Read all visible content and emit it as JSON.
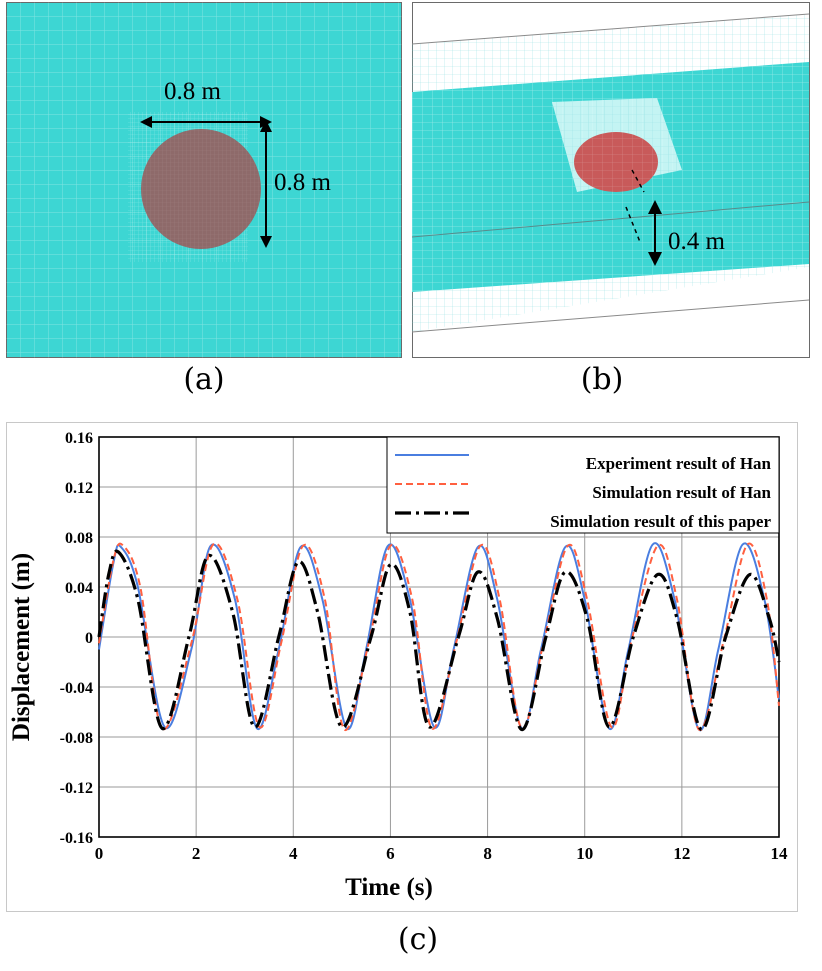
{
  "panel_a": {
    "label": "(a)",
    "width_label": "0.8 m",
    "height_label": "0.8 m",
    "colors": {
      "water": "#3dd6d3",
      "body": "#8e6a6a"
    }
  },
  "panel_b": {
    "label": "(b)",
    "draft_label": "0.4 m",
    "colors": {
      "water": "#3dd6d3",
      "body": "#c85a5a"
    }
  },
  "panel_c": {
    "label": "(c)"
  },
  "chart_data": {
    "type": "line",
    "xlabel": "Time (s)",
    "ylabel": "Displacement (m)",
    "xlim": [
      0,
      14
    ],
    "ylim": [
      -0.16,
      0.16
    ],
    "xticks": [
      "0",
      "2",
      "4",
      "6",
      "8",
      "10",
      "12",
      "14"
    ],
    "yticks": [
      "0.16",
      "0.12",
      "0.08",
      "0.04",
      "0",
      "-0.04",
      "-0.08",
      "-0.12",
      "-0.16"
    ],
    "grid": true,
    "legend_position": "top-right",
    "series": [
      {
        "name": "Experiment result of Han",
        "color": "#4a7ee0",
        "style": "solid",
        "points": [
          [
            0,
            -0.01
          ],
          [
            0.3,
            0.06
          ],
          [
            0.45,
            0.072
          ],
          [
            0.8,
            0.04
          ],
          [
            1.35,
            -0.072
          ],
          [
            1.9,
            -0.01
          ],
          [
            2.3,
            0.073
          ],
          [
            2.8,
            0.03
          ],
          [
            3.25,
            -0.073
          ],
          [
            3.7,
            -0.01
          ],
          [
            4.15,
            0.072
          ],
          [
            4.6,
            0.03
          ],
          [
            5.1,
            -0.073
          ],
          [
            5.5,
            -0.01
          ],
          [
            5.95,
            0.073
          ],
          [
            6.4,
            0.03
          ],
          [
            6.9,
            -0.072
          ],
          [
            7.3,
            -0.01
          ],
          [
            7.8,
            0.072
          ],
          [
            8.2,
            0.03
          ],
          [
            8.7,
            -0.073
          ],
          [
            9.1,
            -0.01
          ],
          [
            9.6,
            0.072
          ],
          [
            10.0,
            0.03
          ],
          [
            10.5,
            -0.073
          ],
          [
            10.9,
            -0.01
          ],
          [
            11.4,
            0.074
          ],
          [
            11.85,
            0.03
          ],
          [
            12.35,
            -0.074
          ],
          [
            12.75,
            -0.01
          ],
          [
            13.25,
            0.074
          ],
          [
            13.7,
            0.03
          ],
          [
            14,
            -0.05
          ]
        ]
      },
      {
        "name": "Simulation result of Han",
        "color": "#ff6040",
        "style": "dashed",
        "points": [
          [
            0,
            -0.005
          ],
          [
            0.3,
            0.062
          ],
          [
            0.5,
            0.073
          ],
          [
            0.85,
            0.04
          ],
          [
            1.3,
            -0.073
          ],
          [
            1.9,
            -0.005
          ],
          [
            2.35,
            0.074
          ],
          [
            2.85,
            0.03
          ],
          [
            3.3,
            -0.072
          ],
          [
            3.75,
            -0.005
          ],
          [
            4.2,
            0.073
          ],
          [
            4.65,
            0.03
          ],
          [
            5.05,
            -0.074
          ],
          [
            5.55,
            -0.005
          ],
          [
            6.0,
            0.073
          ],
          [
            6.45,
            0.03
          ],
          [
            6.85,
            -0.073
          ],
          [
            7.35,
            -0.005
          ],
          [
            7.85,
            0.073
          ],
          [
            8.25,
            0.03
          ],
          [
            8.7,
            -0.073
          ],
          [
            9.15,
            -0.005
          ],
          [
            9.65,
            0.073
          ],
          [
            10.05,
            0.03
          ],
          [
            10.55,
            -0.072
          ],
          [
            10.95,
            -0.005
          ],
          [
            11.5,
            0.073
          ],
          [
            11.9,
            0.03
          ],
          [
            12.35,
            -0.074
          ],
          [
            12.85,
            -0.005
          ],
          [
            13.35,
            0.074
          ],
          [
            13.75,
            0.03
          ],
          [
            14,
            -0.055
          ]
        ]
      },
      {
        "name": "Simulation result of this paper",
        "color": "#000000",
        "style": "dashdot",
        "points": [
          [
            0,
            0.0
          ],
          [
            0.2,
            0.05
          ],
          [
            0.4,
            0.068
          ],
          [
            0.8,
            0.03
          ],
          [
            1.3,
            -0.073
          ],
          [
            1.85,
            0.0
          ],
          [
            2.25,
            0.065
          ],
          [
            2.75,
            0.02
          ],
          [
            3.2,
            -0.072
          ],
          [
            3.7,
            0.0
          ],
          [
            4.1,
            0.06
          ],
          [
            4.5,
            0.02
          ],
          [
            5.0,
            -0.072
          ],
          [
            5.6,
            0.0
          ],
          [
            6.0,
            0.058
          ],
          [
            6.4,
            0.02
          ],
          [
            6.8,
            -0.072
          ],
          [
            7.4,
            0.0
          ],
          [
            7.8,
            0.052
          ],
          [
            8.2,
            0.015
          ],
          [
            8.7,
            -0.074
          ],
          [
            9.2,
            0.0
          ],
          [
            9.6,
            0.052
          ],
          [
            10.05,
            0.015
          ],
          [
            10.5,
            -0.072
          ],
          [
            11.0,
            0.0
          ],
          [
            11.5,
            0.05
          ],
          [
            11.9,
            0.015
          ],
          [
            12.4,
            -0.074
          ],
          [
            12.9,
            0.0
          ],
          [
            13.4,
            0.05
          ],
          [
            13.8,
            0.015
          ],
          [
            14,
            -0.02
          ]
        ]
      }
    ]
  }
}
